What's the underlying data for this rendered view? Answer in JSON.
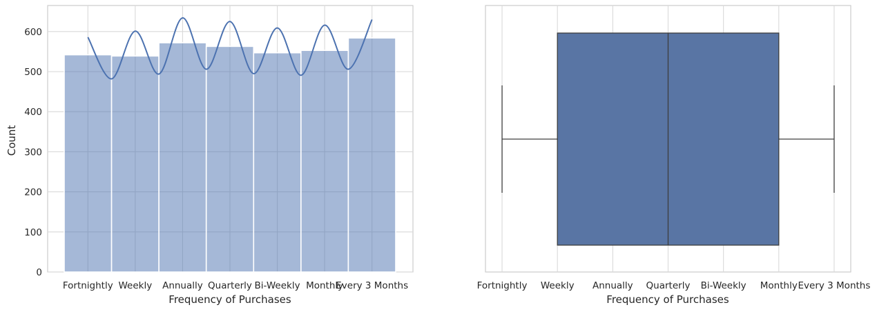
{
  "chart_data": [
    {
      "type": "bar",
      "subtype": "histogram-with-kde",
      "title": "",
      "xlabel": "Frequency of Purchases",
      "ylabel": "Count",
      "categories": [
        "Fortnightly",
        "Weekly",
        "Annually",
        "Quarterly",
        "Bi-Weekly",
        "Monthly",
        "Every 3 Months"
      ],
      "values": [
        542,
        539,
        572,
        563,
        547,
        553,
        584
      ],
      "ylim": [
        0,
        665
      ],
      "yticks": [
        0,
        100,
        200,
        300,
        400,
        500,
        600
      ],
      "kde": {
        "x": [
          0,
          0.5,
          1,
          1.5,
          2,
          2.5,
          3,
          3.5,
          4,
          4.5,
          5,
          5.5,
          6
        ],
        "y": [
          586,
          482,
          601,
          494,
          634,
          506,
          625,
          495,
          609,
          491,
          616,
          506,
          630
        ]
      },
      "grid": true,
      "colors": {
        "bar_fill": "#4c72b0",
        "bar_opacity": 0.5,
        "kde_line": "#4c72b0"
      }
    },
    {
      "type": "box",
      "title": "",
      "xlabel": "Frequency of Purchases",
      "categories": [
        "Fortnightly",
        "Weekly",
        "Annually",
        "Quarterly",
        "Bi-Weekly",
        "Monthly",
        "Every 3 Months"
      ],
      "xlim": [
        -0.3,
        6.3
      ],
      "box": {
        "whisker_low": 0,
        "q1": 1,
        "median": 3,
        "q3": 5,
        "whisker_high": 6
      },
      "grid": true,
      "colors": {
        "box_fill": "#5975a4",
        "box_edge": "#3d3d3d"
      }
    }
  ]
}
